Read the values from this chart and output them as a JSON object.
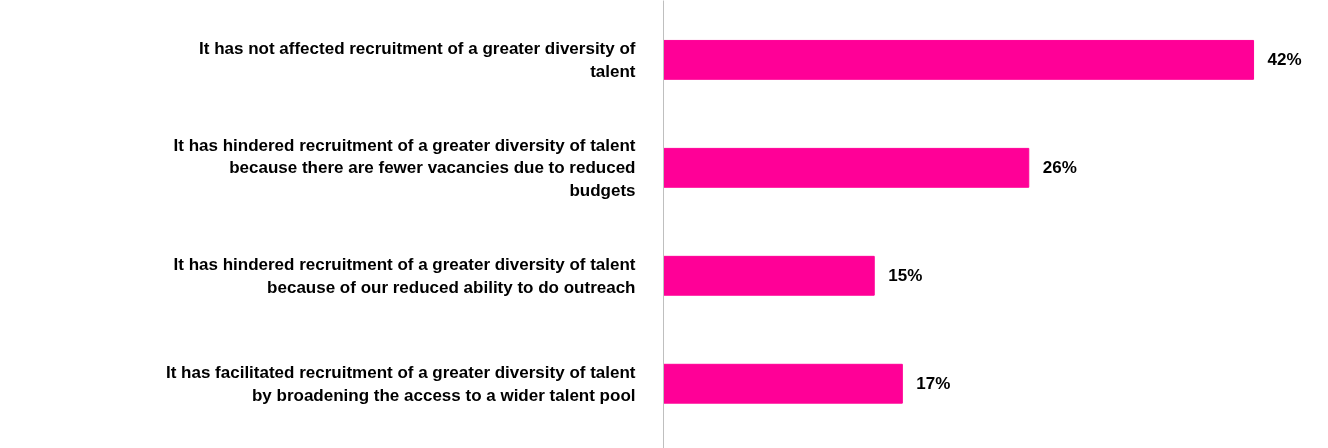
{
  "chart_data": {
    "type": "bar",
    "orientation": "horizontal",
    "categories": [
      "It has not affected recruitment of a greater diversity of\ntalent",
      "It has hindered recruitment of a greater diversity of talent\nbecause there are fewer vacancies due to reduced\nbudgets",
      "It has hindered recruitment of a greater diversity of talent\nbecause of our reduced ability to do outreach",
      "It has facilitated recruitment of a greater diversity of talent\nby broadening the access to a wider talent pool"
    ],
    "values": [
      42,
      26,
      15,
      17
    ],
    "color": "#ff0097",
    "data_labels": true,
    "value_labels": [
      "42%",
      "26%",
      "15%",
      "17%"
    ]
  }
}
